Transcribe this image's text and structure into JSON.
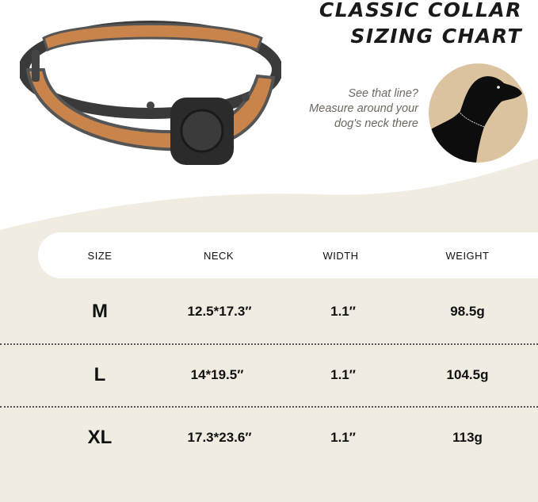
{
  "title": {
    "line1": "CLASSIC COLLAR",
    "line2": "SIZING CHART"
  },
  "hint": {
    "line1": "See that line?",
    "line2": "Measure around your",
    "line3": "dog's neck there"
  },
  "table": {
    "headers": [
      "SIZE",
      "NECK",
      "WIDTH",
      "WEIGHT"
    ],
    "rows": [
      {
        "size": "M",
        "neck": "12.5*17.3″",
        "width": "1.1″",
        "weight": "98.5g"
      },
      {
        "size": "L",
        "neck": "14*19.5″",
        "width": "1.1″",
        "weight": "104.5g"
      },
      {
        "size": "XL",
        "neck": "17.3*23.6″",
        "width": "1.1″",
        "weight": "113g"
      }
    ]
  },
  "colors": {
    "background": "#f3efe6",
    "accent": "#dcc3a0",
    "leather": "#c8844a"
  }
}
